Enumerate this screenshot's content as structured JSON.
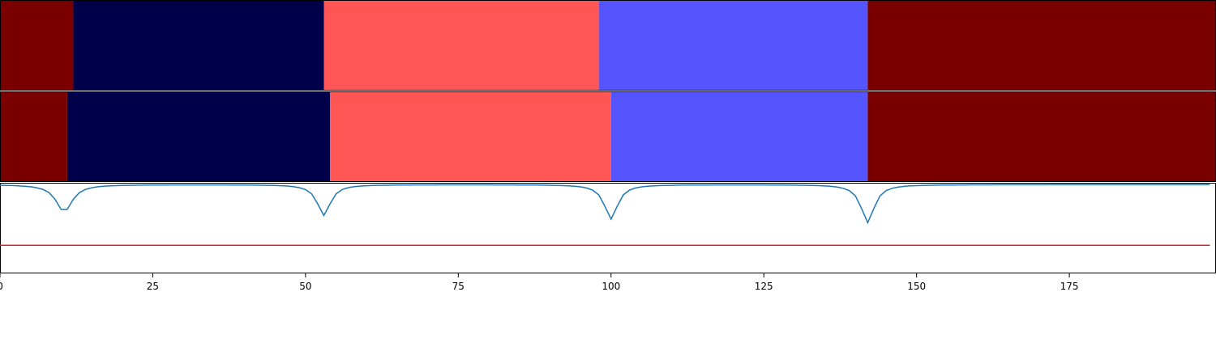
{
  "chart_data": {
    "type": "segmentation",
    "title": "",
    "xlabel": "",
    "ylabel": "",
    "xlim": [
      0,
      199
    ],
    "x_ticks": [
      0,
      25,
      50,
      75,
      100,
      125,
      150,
      175
    ],
    "grid": false,
    "legend": "none",
    "colors": {
      "dark_red": "#7a0000",
      "navy": "#00004a",
      "salmon": "#ff5555",
      "periwinkle": "#5555ff",
      "signal_line": "#1f77b4",
      "threshold_line": "#d62728"
    },
    "rows": [
      {
        "name": "",
        "segments": [
          {
            "start": 0,
            "end": 12,
            "color": "#7a0000"
          },
          {
            "start": 12,
            "end": 53,
            "color": "#00004a"
          },
          {
            "start": 53,
            "end": 98,
            "color": "#ff5555"
          },
          {
            "start": 98,
            "end": 142,
            "color": "#5555ff"
          },
          {
            "start": 142,
            "end": 199,
            "color": "#7a0000"
          }
        ]
      },
      {
        "name": "",
        "segments": [
          {
            "start": 0,
            "end": 11,
            "color": "#7a0000"
          },
          {
            "start": 11,
            "end": 54,
            "color": "#00004a"
          },
          {
            "start": 54,
            "end": 100,
            "color": "#ff5555"
          },
          {
            "start": 100,
            "end": 142,
            "color": "#5555ff"
          },
          {
            "start": 142,
            "end": 199,
            "color": "#7a0000"
          }
        ]
      }
    ],
    "signal": {
      "ylim": [
        0,
        1
      ],
      "baseline": 0.98,
      "dips": [
        {
          "x": 10.5,
          "y": 0.68,
          "width": 1.6
        },
        {
          "x": 53,
          "y": 0.64,
          "width": 1.3
        },
        {
          "x": 100,
          "y": 0.6,
          "width": 1.3
        },
        {
          "x": 142,
          "y": 0.56,
          "width": 1.3
        }
      ]
    },
    "threshold": {
      "y": 0.31
    }
  }
}
